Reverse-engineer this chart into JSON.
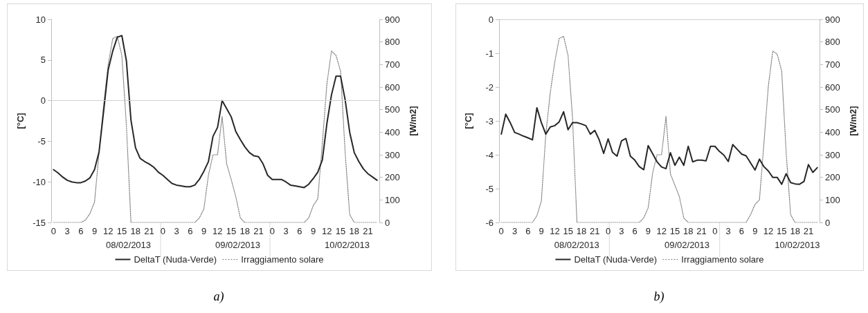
{
  "chart_data": [
    {
      "type": "line",
      "ylabel": "[°C]",
      "y2label": "[W/m2]",
      "categories": [
        "0",
        null,
        null,
        "3",
        null,
        null,
        "6",
        null,
        null,
        "9",
        null,
        null,
        "12",
        null,
        null,
        "15",
        null,
        null,
        "18",
        null,
        null,
        "21",
        null,
        null,
        "0",
        null,
        null,
        "3",
        null,
        null,
        "6",
        null,
        null,
        "9",
        null,
        null,
        "12",
        null,
        null,
        "15",
        null,
        null,
        "18",
        null,
        null,
        "21",
        null,
        null,
        "0",
        null,
        null,
        "3",
        null,
        null,
        "6",
        null,
        null,
        "9",
        null,
        null,
        "12",
        null,
        null,
        "15",
        null,
        null,
        "18",
        null,
        null,
        "21",
        null,
        null
      ],
      "series": [
        {
          "name": "DeltaT (Nuda-Verde)",
          "color": "#262626",
          "line_style": "solid",
          "values": [
            -8.5,
            -8.9,
            -9.4,
            -9.8,
            -10.0,
            -10.1,
            -10.1,
            -9.9,
            -9.5,
            -8.5,
            -6.3,
            -1.3,
            3.8,
            6.1,
            7.8,
            8.0,
            4.9,
            -2.4,
            -5.8,
            -7.1,
            -7.5,
            -7.8,
            -8.2,
            -8.8,
            -9.2,
            -9.7,
            -10.2,
            -10.4,
            -10.5,
            -10.6,
            -10.6,
            -10.4,
            -9.7,
            -8.7,
            -7.5,
            -4.4,
            -3.3,
            0.0,
            -1.0,
            -2.0,
            -3.8,
            -4.8,
            -5.7,
            -6.4,
            -6.8,
            -6.9,
            -7.8,
            -9.2,
            -9.7,
            -9.7,
            -9.7,
            -10.0,
            -10.4,
            -10.5,
            -10.6,
            -10.7,
            -10.3,
            -9.6,
            -8.8,
            -7.3,
            -2.8,
            0.7,
            3.0,
            3.0,
            0.1,
            -3.9,
            -6.4,
            -7.5,
            -8.4,
            -9.0,
            -9.4,
            -9.8
          ]
        },
        {
          "name": "Irraggiamento solare",
          "color": "#808080",
          "line_style": "dotted",
          "axis": "y2",
          "values": [
            0,
            0,
            0,
            0,
            0,
            0,
            0,
            10,
            40,
            90,
            310,
            520,
            700,
            815,
            825,
            740,
            430,
            0,
            0,
            0,
            0,
            0,
            0,
            0,
            0,
            0,
            0,
            0,
            0,
            0,
            0,
            0,
            20,
            60,
            210,
            300,
            300,
            470,
            260,
            190,
            115,
            20,
            0,
            0,
            0,
            0,
            0,
            0,
            0,
            0,
            0,
            0,
            0,
            0,
            0,
            0,
            20,
            75,
            105,
            350,
            615,
            760,
            740,
            670,
            310,
            35,
            0,
            0,
            0,
            0,
            0,
            0
          ]
        }
      ],
      "ylim": [
        -15,
        10
      ],
      "yticks": [
        -15,
        -10,
        -5,
        0,
        5,
        10
      ],
      "y2lim": [
        0,
        900
      ],
      "y2ticks": [
        0,
        100,
        200,
        300,
        400,
        500,
        600,
        700,
        800,
        900
      ],
      "ref_lines": [
        {
          "axis": "y",
          "value": 0,
          "color": "#d0d0d0"
        }
      ],
      "grid": false,
      "marker": "none",
      "legend": "bottom",
      "annotations": [
        "08/02/2013",
        "09/02/2013",
        "10/02/2013",
        "a)"
      ]
    },
    {
      "type": "line",
      "ylabel": "[°C]",
      "y2label": "[W/m2]",
      "categories": [
        "0",
        null,
        null,
        "3",
        null,
        null,
        "6",
        null,
        null,
        "9",
        null,
        null,
        "12",
        null,
        null,
        "15",
        null,
        null,
        "18",
        null,
        null,
        "21",
        null,
        null,
        "0",
        null,
        null,
        "3",
        null,
        null,
        "6",
        null,
        null,
        "9",
        null,
        null,
        "12",
        null,
        null,
        "15",
        null,
        null,
        "18",
        null,
        null,
        "21",
        null,
        null,
        "0",
        null,
        null,
        "3",
        null,
        null,
        "6",
        null,
        null,
        "9",
        null,
        null,
        "12",
        null,
        null,
        "15",
        null,
        null,
        "18",
        null,
        null,
        "21",
        null,
        null
      ],
      "series": [
        {
          "name": "DeltaT (Nuda-Verde)",
          "color": "#262626",
          "line_style": "solid",
          "values": [
            -3.39,
            -2.8,
            -3.05,
            -3.34,
            -3.39,
            -3.45,
            -3.5,
            -3.56,
            -2.61,
            -3.05,
            -3.39,
            -3.18,
            -3.14,
            -3.03,
            -2.73,
            -3.26,
            -3.05,
            -3.05,
            -3.09,
            -3.14,
            -3.39,
            -3.28,
            -3.56,
            -3.96,
            -3.53,
            -3.93,
            -4.04,
            -3.59,
            -3.52,
            -4.04,
            -4.16,
            -4.35,
            -4.44,
            -3.73,
            -3.97,
            -4.21,
            -4.36,
            -4.41,
            -3.94,
            -4.31,
            -4.07,
            -4.31,
            -3.75,
            -4.21,
            -4.16,
            -4.16,
            -4.18,
            -3.75,
            -3.75,
            -3.9,
            -4.01,
            -4.2,
            -3.7,
            -3.84,
            -3.98,
            -4.03,
            -4.24,
            -4.45,
            -4.13,
            -4.35,
            -4.48,
            -4.67,
            -4.67,
            -4.87,
            -4.56,
            -4.82,
            -4.86,
            -4.87,
            -4.79,
            -4.29,
            -4.52,
            -4.38
          ]
        },
        {
          "name": "Irraggiamento solare",
          "color": "#808080",
          "line_style": "dotted",
          "axis": "y2",
          "values": [
            0,
            0,
            0,
            0,
            0,
            0,
            0,
            0,
            30,
            95,
            390,
            575,
            710,
            815,
            825,
            740,
            465,
            0,
            0,
            0,
            0,
            0,
            0,
            0,
            0,
            0,
            0,
            0,
            0,
            0,
            0,
            0,
            20,
            65,
            220,
            300,
            300,
            470,
            215,
            165,
            115,
            20,
            0,
            0,
            0,
            0,
            0,
            0,
            0,
            0,
            0,
            0,
            0,
            0,
            0,
            0,
            35,
            80,
            100,
            350,
            605,
            760,
            745,
            670,
            310,
            35,
            0,
            0,
            0,
            0,
            0,
            0
          ]
        }
      ],
      "ylim": [
        -6,
        0
      ],
      "yticks": [
        -6,
        -5,
        -4,
        -3,
        -2,
        -1,
        0
      ],
      "y2lim": [
        0,
        900
      ],
      "y2ticks": [
        0,
        100,
        200,
        300,
        400,
        500,
        600,
        700,
        800,
        900
      ],
      "ref_lines": [
        {
          "axis": "y",
          "value": 0,
          "color": "#d0d0d0"
        }
      ],
      "grid": false,
      "marker": "none",
      "legend": "bottom",
      "annotations": [
        "08/02/2013",
        "09/02/2013",
        "10/02/2013",
        "b)"
      ]
    }
  ]
}
